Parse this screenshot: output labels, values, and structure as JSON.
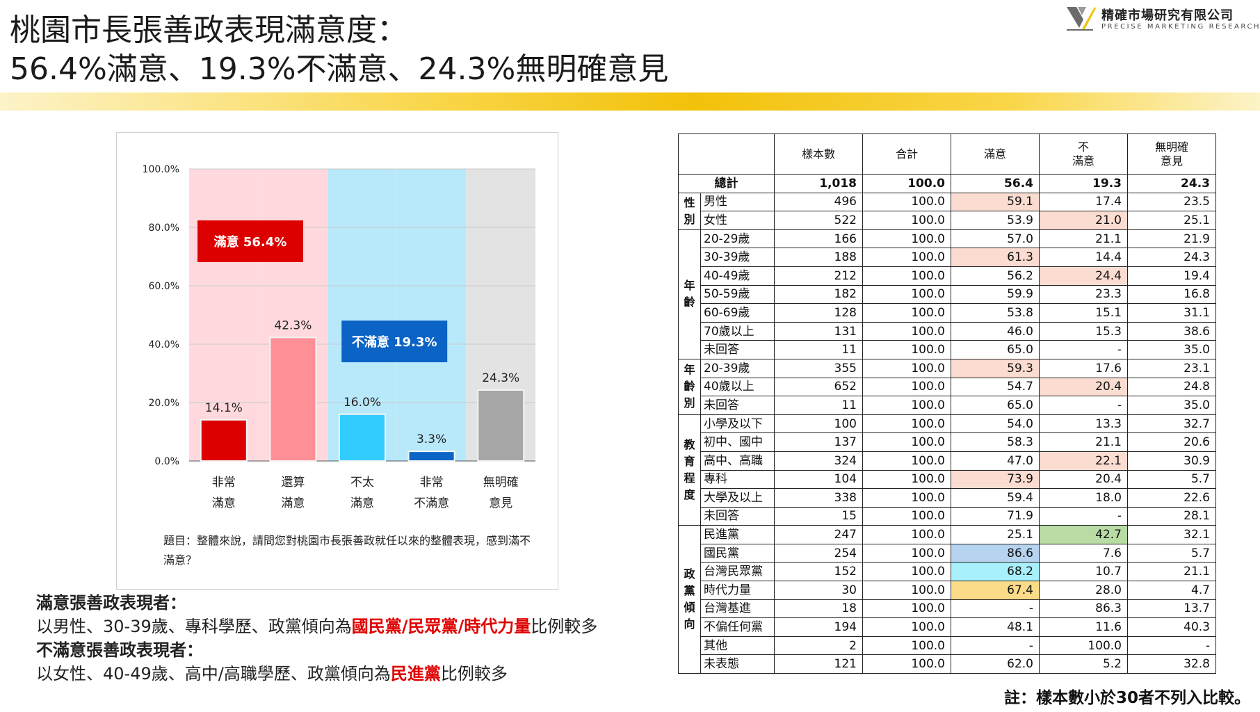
{
  "title": {
    "line1": "桃園市長張善政表現滿意度：",
    "line2": "56.4%滿意、19.3%不滿意、24.3%無明確意見"
  },
  "logo": {
    "name_cn": "精確市場研究有限公司",
    "name_en": "PRECISE MARKETING RESEARCH"
  },
  "colors": {
    "very_satisfied": "#dd0000",
    "fairly_satisfied": "#ff8f96",
    "not_very_satisfied": "#33ccff",
    "very_unsatisfied": "#0b63c6",
    "no_opinion": "#a6a6a6",
    "satisfied_zone": "#ffd9dd",
    "unsatisfied_zone": "#b8e9fa",
    "no_opinion_zone": "#e3e3e3",
    "band_gold": "#f2c10a"
  },
  "chart_data": {
    "type": "bar",
    "categories": [
      [
        "非常",
        "滿意"
      ],
      [
        "還算",
        "滿意"
      ],
      [
        "不太",
        "滿意"
      ],
      [
        "非常",
        "不滿意"
      ],
      [
        "無明確",
        "意見"
      ]
    ],
    "values": [
      14.1,
      42.3,
      16.0,
      3.3,
      24.3
    ],
    "value_labels": [
      "14.1%",
      "42.3%",
      "16.0%",
      "3.3%",
      "24.3%"
    ],
    "yticks": [
      "0.0%",
      "20.0%",
      "40.0%",
      "60.0%",
      "80.0%",
      "100.0%"
    ],
    "ylim": [
      0,
      100
    ],
    "groups": [
      {
        "label": "滿意 56.4%",
        "value": 56.4,
        "members": [
          0,
          1
        ]
      },
      {
        "label": "不滿意 19.3%",
        "value": 19.3,
        "members": [
          2,
          3
        ]
      }
    ],
    "grid": true
  },
  "question": "題目：整體來說，請問您對桃園市長張善政就任以來的整體表現，感到滿不滿意？",
  "summary": {
    "satisfied_heading": "滿意張善政表現者：",
    "satisfied_pre": "以男性、30-39歲、專科學歷、政黨傾向為",
    "satisfied_parties": "國民黨/民眾黨/時代力量",
    "satisfied_post": "比例較多",
    "unsatisfied_heading": "不滿意張善政表現者：",
    "unsatisfied_pre": "以女性、40-49歲、高中/高職學歷、政黨傾向為",
    "unsatisfied_parties": "民進黨",
    "unsatisfied_post": "比例較多"
  },
  "table": {
    "headers": [
      "",
      "樣本數",
      "合計",
      "滿意",
      "不\n滿意",
      "無明確\n意見"
    ],
    "total": {
      "label": "總計",
      "values": [
        "1,018",
        "100.0",
        "56.4",
        "19.3",
        "24.3"
      ]
    },
    "groups": [
      {
        "label": "性\n別",
        "rows": [
          {
            "label": "男性",
            "values": [
              "496",
              "100.0",
              "59.1",
              "17.4",
              "23.5"
            ],
            "hl": [
              null,
              null,
              "pink",
              null,
              null
            ]
          },
          {
            "label": "女性",
            "values": [
              "522",
              "100.0",
              "53.9",
              "21.0",
              "25.1"
            ],
            "hl": [
              null,
              null,
              null,
              "pink",
              null
            ]
          }
        ]
      },
      {
        "label": "年\n齡",
        "rows": [
          {
            "label": "20-29歲",
            "values": [
              "166",
              "100.0",
              "57.0",
              "21.1",
              "21.9"
            ]
          },
          {
            "label": "30-39歲",
            "values": [
              "188",
              "100.0",
              "61.3",
              "14.4",
              "24.3"
            ],
            "hl": [
              null,
              null,
              "pink",
              null,
              null
            ]
          },
          {
            "label": "40-49歲",
            "values": [
              "212",
              "100.0",
              "56.2",
              "24.4",
              "19.4"
            ],
            "hl": [
              null,
              null,
              null,
              "pink",
              null
            ]
          },
          {
            "label": "50-59歲",
            "values": [
              "182",
              "100.0",
              "59.9",
              "23.3",
              "16.8"
            ]
          },
          {
            "label": "60-69歲",
            "values": [
              "128",
              "100.0",
              "53.8",
              "15.1",
              "31.1"
            ]
          },
          {
            "label": "70歲以上",
            "values": [
              "131",
              "100.0",
              "46.0",
              "15.3",
              "38.6"
            ]
          },
          {
            "label": "未回答",
            "values": [
              "11",
              "100.0",
              "65.0",
              "-",
              "35.0"
            ]
          }
        ]
      },
      {
        "label": "年\n齡\n別",
        "rows": [
          {
            "label": "20-39歲",
            "values": [
              "355",
              "100.0",
              "59.3",
              "17.6",
              "23.1"
            ],
            "hl": [
              null,
              null,
              "pink",
              null,
              null
            ]
          },
          {
            "label": "40歲以上",
            "values": [
              "652",
              "100.0",
              "54.7",
              "20.4",
              "24.8"
            ],
            "hl": [
              null,
              null,
              null,
              "pink",
              null
            ]
          },
          {
            "label": "未回答",
            "values": [
              "11",
              "100.0",
              "65.0",
              "-",
              "35.0"
            ]
          }
        ]
      },
      {
        "label": "教\n育\n程\n度",
        "rows": [
          {
            "label": "小學及以下",
            "values": [
              "100",
              "100.0",
              "54.0",
              "13.3",
              "32.7"
            ]
          },
          {
            "label": "初中、國中",
            "values": [
              "137",
              "100.0",
              "58.3",
              "21.1",
              "20.6"
            ]
          },
          {
            "label": "高中、高職",
            "values": [
              "324",
              "100.0",
              "47.0",
              "22.1",
              "30.9"
            ],
            "hl": [
              null,
              null,
              null,
              "pink",
              null
            ]
          },
          {
            "label": "專科",
            "values": [
              "104",
              "100.0",
              "73.9",
              "20.4",
              "5.7"
            ],
            "hl": [
              null,
              null,
              "pink",
              null,
              null
            ]
          },
          {
            "label": "大學及以上",
            "values": [
              "338",
              "100.0",
              "59.4",
              "18.0",
              "22.6"
            ]
          },
          {
            "label": "未回答",
            "values": [
              "15",
              "100.0",
              "71.9",
              "-",
              "28.1"
            ]
          }
        ]
      },
      {
        "label": "政\n黨\n傾\n向",
        "rows": [
          {
            "label": "民進黨",
            "values": [
              "247",
              "100.0",
              "25.1",
              "42.7",
              "32.1"
            ],
            "hl": [
              null,
              null,
              null,
              "green",
              null
            ]
          },
          {
            "label": "國民黨",
            "values": [
              "254",
              "100.0",
              "86.6",
              "7.6",
              "5.7"
            ],
            "hl": [
              null,
              null,
              "blue",
              null,
              null
            ]
          },
          {
            "label": "台灣民眾黨",
            "values": [
              "152",
              "100.0",
              "68.2",
              "10.7",
              "21.1"
            ],
            "hl": [
              null,
              null,
              "cyan",
              null,
              null
            ]
          },
          {
            "label": "時代力量",
            "values": [
              "30",
              "100.0",
              "67.4",
              "28.0",
              "4.7"
            ],
            "hl": [
              null,
              null,
              "yellow",
              null,
              null
            ]
          },
          {
            "label": "台灣基進",
            "values": [
              "18",
              "100.0",
              "-",
              "86.3",
              "13.7"
            ]
          },
          {
            "label": "不偏任何黨",
            "values": [
              "194",
              "100.0",
              "48.1",
              "11.6",
              "40.3"
            ]
          },
          {
            "label": "其他",
            "values": [
              "2",
              "100.0",
              "-",
              "100.0",
              "-"
            ]
          },
          {
            "label": "未表態",
            "values": [
              "121",
              "100.0",
              "62.0",
              "5.2",
              "32.8"
            ]
          }
        ]
      }
    ]
  },
  "footnote": "註：樣本數小於30者不列入比較。"
}
